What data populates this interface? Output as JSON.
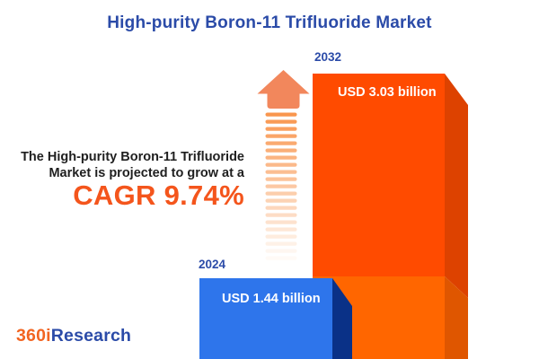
{
  "header": {
    "title": "High-purity Boron-11 Trifluoride Market"
  },
  "annotation": {
    "line1": "The High-purity Boron-11 Trifluoride",
    "line2": "Market is projected to grow at a",
    "cagr": "CAGR 9.74%"
  },
  "chart_data": {
    "type": "bar",
    "title": "High-purity Boron-11 Trifluoride Market",
    "categories": [
      "2024",
      "2032"
    ],
    "values": [
      1.44,
      3.03
    ],
    "unit": "USD billion",
    "value_labels": [
      "USD 1.44 billion",
      "USD 3.03 billion"
    ],
    "cagr_percent": 9.74,
    "legend": false,
    "style": "3d-infographic",
    "series_colors": [
      "#2E75EB",
      "#FF4B00"
    ]
  },
  "logo": {
    "part1": "360i",
    "part2": "Research"
  },
  "colors": {
    "title_blue": "#2B4BA8",
    "text_dark": "#1F1F1F",
    "cagr_orange": "#F4551C",
    "label_white": "#FFFFFF",
    "bar2032_front": "#FF4B00",
    "bar2032_front_lower": "#FF6600",
    "bar2032_side": "#DD4200",
    "bar2032_side_lower": "#DF5600",
    "bar2024_front": "#2E75EB",
    "bar2024_side": "#0A3187",
    "arrow": "#F2875C",
    "stripe": "#F9964E",
    "logo_orange": "#F26522",
    "logo_blue": "#2B4BA8"
  }
}
